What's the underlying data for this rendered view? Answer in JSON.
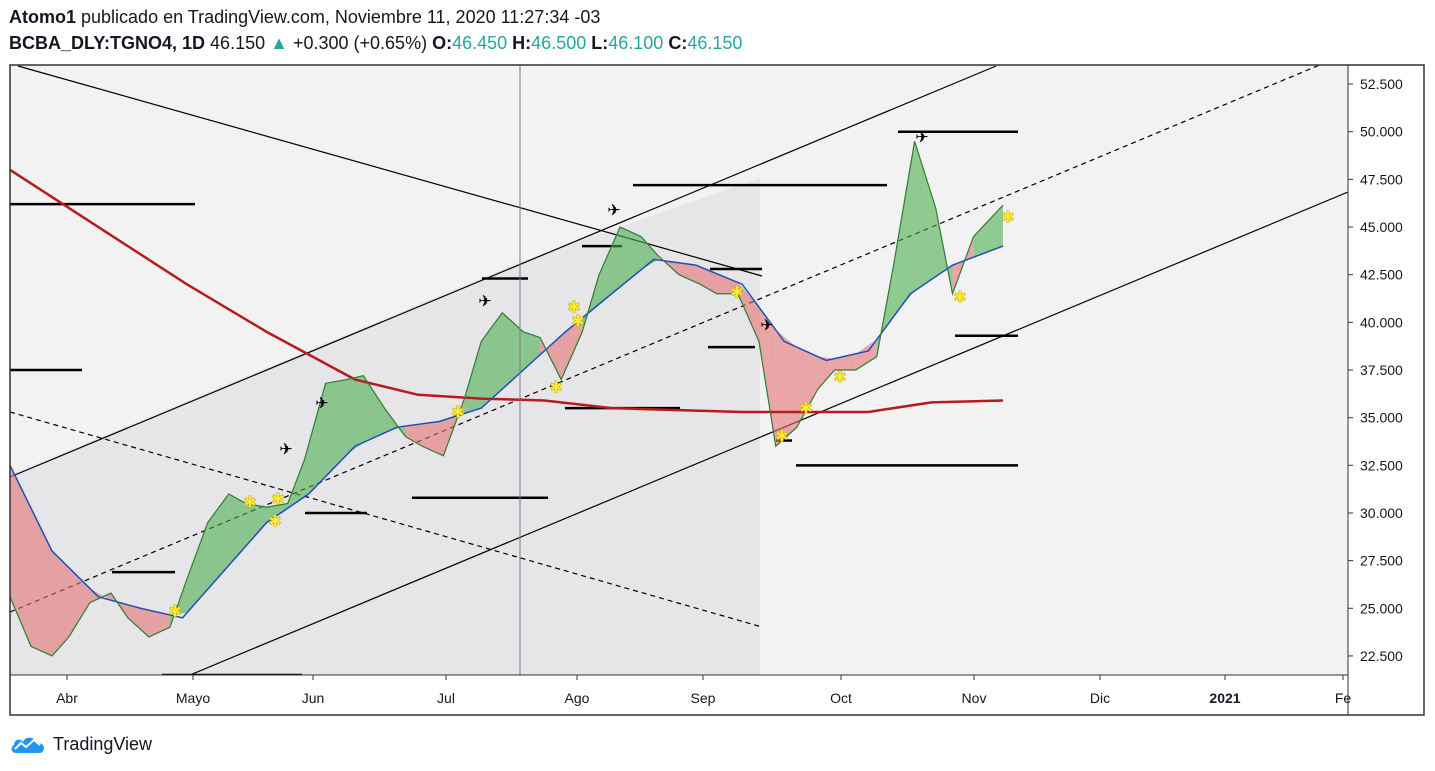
{
  "header": {
    "author": "Atomo1",
    "published": "publicado en TradingView.com, Noviembre 11, 2020 11:27:34 -03",
    "symbol": "BCBA_DLY:TGNO4, 1D",
    "price": "46.150",
    "arrow": "▲",
    "change": "+0.300 (+0.65%)",
    "o_label": "O:",
    "o_value": "46.450",
    "h_label": "H:",
    "h_value": "46.500",
    "l_label": "L:",
    "l_value": "46.100",
    "c_label": "C:",
    "c_value": "46.150"
  },
  "footer": {
    "brand": "TradingView"
  },
  "colors": {
    "up": "#26a69a",
    "ribbon_up": "#4caf50",
    "ribbon_down": "#e57373",
    "ma200": "#b71c1c",
    "ma_fast": "#1e4fb8",
    "signal": "#ffeb3b"
  },
  "chart_data": {
    "type": "line",
    "x_labels": [
      "Abr",
      "Mayo",
      "Jun",
      "Jul",
      "Ago",
      "Sep",
      "Oct",
      "Nov",
      "Dic",
      "2021",
      "Fe"
    ],
    "y_ticks": [
      "22.500",
      "25.000",
      "27.500",
      "30.000",
      "32.500",
      "35.000",
      "37.500",
      "40.000",
      "42.500",
      "45.000",
      "47.500",
      "50.000",
      "52.500"
    ],
    "ylim": [
      21.5,
      53.5
    ],
    "x_dates": [
      "2020-03-20",
      "2021-02-01"
    ],
    "series": [
      {
        "key": "price",
        "x": [
          "2020-03-20",
          "2020-03-25",
          "2020-03-30",
          "2020-04-03",
          "2020-04-08",
          "2020-04-13",
          "2020-04-17",
          "2020-04-22",
          "2020-04-27",
          "2020-05-01",
          "2020-05-06",
          "2020-05-11",
          "2020-05-15",
          "2020-05-20",
          "2020-05-25",
          "2020-05-29",
          "2020-06-03",
          "2020-06-08",
          "2020-06-12",
          "2020-06-17",
          "2020-06-22",
          "2020-06-26",
          "2020-07-01",
          "2020-07-06",
          "2020-07-10",
          "2020-07-15",
          "2020-07-20",
          "2020-07-24",
          "2020-07-29",
          "2020-08-03",
          "2020-08-07",
          "2020-08-12",
          "2020-08-17",
          "2020-08-21",
          "2020-08-26",
          "2020-08-31",
          "2020-09-04",
          "2020-09-09",
          "2020-09-14",
          "2020-09-18",
          "2020-09-23",
          "2020-09-28",
          "2020-10-02",
          "2020-10-07",
          "2020-10-12",
          "2020-10-16",
          "2020-10-21",
          "2020-10-26",
          "2020-10-30",
          "2020-11-04",
          "2020-11-11"
        ],
        "y": [
          25.6,
          23.0,
          22.5,
          23.5,
          25.3,
          25.8,
          24.5,
          23.5,
          24.0,
          26.5,
          29.5,
          31.0,
          30.5,
          30.3,
          30.5,
          32.8,
          36.8,
          37.0,
          37.2,
          35.5,
          34.0,
          33.5,
          33.0,
          36.0,
          39.0,
          40.5,
          39.5,
          39.2,
          37.0,
          39.5,
          42.5,
          45.0,
          44.5,
          43.5,
          42.5,
          42.0,
          41.5,
          41.5,
          39.0,
          33.5,
          34.5,
          36.5,
          37.5,
          37.5,
          38.2,
          43.0,
          49.5,
          46.0,
          41.5,
          44.5,
          46.15
        ]
      },
      {
        "key": "ma_fast",
        "x": [
          "2020-03-20",
          "2020-03-30",
          "2020-04-10",
          "2020-04-20",
          "2020-04-30",
          "2020-05-10",
          "2020-05-20",
          "2020-05-30",
          "2020-06-10",
          "2020-06-20",
          "2020-06-30",
          "2020-07-10",
          "2020-07-20",
          "2020-07-30",
          "2020-08-10",
          "2020-08-20",
          "2020-08-30",
          "2020-09-10",
          "2020-09-20",
          "2020-09-30",
          "2020-10-10",
          "2020-10-20",
          "2020-10-30",
          "2020-11-11"
        ],
        "y": [
          32.5,
          28.0,
          25.6,
          25.0,
          24.5,
          27.0,
          29.5,
          31.0,
          33.5,
          34.5,
          34.8,
          35.5,
          37.5,
          39.5,
          41.5,
          43.3,
          43.0,
          42.0,
          39.0,
          38.0,
          38.5,
          41.5,
          43.0,
          44.0
        ]
      },
      {
        "key": "ma200",
        "x": [
          "2020-03-20",
          "2020-04-10",
          "2020-05-01",
          "2020-05-20",
          "2020-06-10",
          "2020-06-25",
          "2020-07-10",
          "2020-07-25",
          "2020-08-10",
          "2020-08-25",
          "2020-09-10",
          "2020-09-25",
          "2020-10-10",
          "2020-10-25",
          "2020-11-11"
        ],
        "y": [
          48.0,
          45.0,
          42.0,
          39.5,
          37.0,
          36.2,
          36.0,
          35.9,
          35.5,
          35.4,
          35.3,
          35.3,
          35.3,
          35.8,
          35.9
        ]
      }
    ],
    "levels": [
      {
        "y": 50.0
      },
      {
        "y": 47.2
      },
      {
        "y": 46.2
      },
      {
        "y": 42.3
      },
      {
        "y": 42.8
      },
      {
        "y": 44.0
      },
      {
        "y": 39.3
      },
      {
        "y": 38.7
      },
      {
        "y": 37.5
      },
      {
        "y": 35.5
      },
      {
        "y": 33.8
      },
      {
        "y": 32.5
      },
      {
        "y": 30.8
      },
      {
        "y": 30.0
      },
      {
        "y": 26.9
      },
      {
        "y": 21.5
      }
    ]
  }
}
